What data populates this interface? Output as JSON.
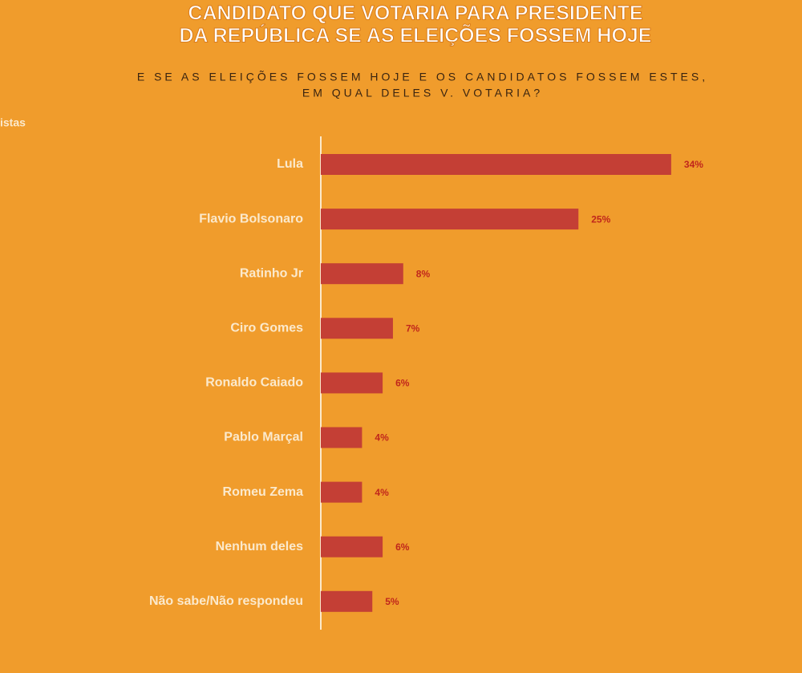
{
  "chart_data": {
    "type": "bar",
    "orientation": "horizontal",
    "title": [
      "CANDIDATO QUE VOTARIA PARA PRESIDENTE",
      "DA REPÚBLICA SE AS ELEIÇÕES FOSSEM HOJE"
    ],
    "subtitle": [
      "E SE AS ELEIÇÕES FOSSEM HOJE E OS CANDIDATOS FOSSEM ESTES,",
      "EM QUAL DELES V. VOTARIA?"
    ],
    "side_label": "istas",
    "categories": [
      "Lula",
      "Flavio Bolsonaro",
      "Ratinho Jr",
      "Ciro Gomes",
      "Ronaldo Caiado",
      "Pablo Marçal",
      "Romeu Zema",
      "Nenhum deles",
      "Não sabe/Não respondeu"
    ],
    "values": [
      34,
      25,
      8,
      7,
      6,
      4,
      4,
      6,
      5
    ],
    "value_labels": [
      "34%",
      "25%",
      "8%",
      "7%",
      "6%",
      "4%",
      "4%",
      "6%",
      "5%"
    ],
    "color": "#c43f35"
  }
}
